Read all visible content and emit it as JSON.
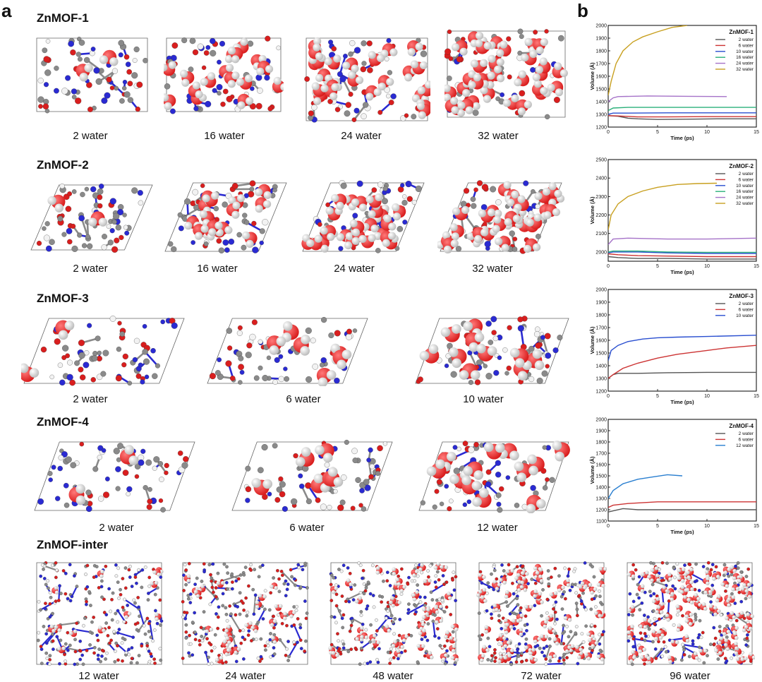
{
  "panel_labels": {
    "a": "a",
    "b": "b"
  },
  "colors": {
    "oxygen": "#d91e1e",
    "hydrogen": "#f2f2f2",
    "nitrogen": "#2a2ad2",
    "carbon": "#8a8a8a",
    "zinc": "#8a8ab0"
  },
  "panel_a": {
    "rows": [
      {
        "title": "ZnMOF-1",
        "labels": [
          "2 water",
          "16 water",
          "24 water",
          "32 water"
        ],
        "cell": "rect",
        "waters": [
          2,
          16,
          24,
          32
        ]
      },
      {
        "title": "ZnMOF-2",
        "labels": [
          "2 water",
          "16 water",
          "24 water",
          "32 water"
        ],
        "cell": "rhombus",
        "waters": [
          2,
          16,
          24,
          32
        ]
      },
      {
        "title": "ZnMOF-3",
        "labels": [
          "2 water",
          "6 water",
          "10 water"
        ],
        "cell": "parallelogram",
        "waters": [
          2,
          6,
          10
        ]
      },
      {
        "title": "ZnMOF-4",
        "labels": [
          "2 water",
          "6 water",
          "12 water"
        ],
        "cell": "parallelogram",
        "waters": [
          2,
          6,
          12
        ]
      },
      {
        "title": "ZnMOF-inter",
        "labels": [
          "12 water",
          "24 water",
          "48 water",
          "72 water",
          "96 water"
        ],
        "cell": "rect",
        "waters": [
          12,
          24,
          48,
          72,
          96
        ]
      }
    ]
  },
  "chart_data": [
    {
      "type": "line",
      "title": "ZnMOF-1",
      "xlabel": "Time (ps)",
      "ylabel": "Volume (Å)",
      "xlim": [
        0,
        15
      ],
      "ylim": [
        1200,
        2000
      ],
      "xticks": [
        "0",
        "5",
        "10",
        "15"
      ],
      "yticks": [
        "1200",
        "1300",
        "1400",
        "1500",
        "1600",
        "1700",
        "1800",
        "1900",
        "2000"
      ],
      "legend_position": "top-right",
      "series": [
        {
          "name": "2  water",
          "color": "#555555",
          "x": [
            0,
            1,
            2,
            3,
            5,
            8,
            11,
            15
          ],
          "y": [
            1290,
            1285,
            1270,
            1265,
            1260,
            1262,
            1265,
            1265
          ]
        },
        {
          "name": "6  water",
          "color": "#cc3333",
          "x": [
            0,
            1,
            3,
            6,
            10,
            15
          ],
          "y": [
            1290,
            1288,
            1280,
            1280,
            1282,
            1282
          ]
        },
        {
          "name": "10 water",
          "color": "#2a4fd0",
          "x": [
            0,
            0.5,
            2,
            6,
            10,
            15
          ],
          "y": [
            1300,
            1310,
            1310,
            1312,
            1312,
            1312
          ]
        },
        {
          "name": "16 water",
          "color": "#2bb07a",
          "x": [
            0,
            0.5,
            2,
            6,
            10,
            15
          ],
          "y": [
            1330,
            1350,
            1355,
            1355,
            1355,
            1355
          ]
        },
        {
          "name": "24 water",
          "color": "#a572c8",
          "x": [
            0,
            0.5,
            1,
            4,
            8,
            12
          ],
          "y": [
            1400,
            1430,
            1440,
            1445,
            1442,
            1440
          ]
        },
        {
          "name": "32 water",
          "color": "#c8a020",
          "x": [
            0,
            0.3,
            0.8,
            1.5,
            2.5,
            3.5,
            5,
            6.5,
            8
          ],
          "y": [
            1450,
            1560,
            1700,
            1800,
            1870,
            1910,
            1950,
            1985,
            2000
          ]
        }
      ]
    },
    {
      "type": "line",
      "title": "ZnMOF-2",
      "xlabel": "Time (ps)",
      "ylabel": "Volume (Å)",
      "xlim": [
        0,
        15
      ],
      "ylim": [
        1950,
        2500
      ],
      "xticks": [
        "0",
        "5",
        "10",
        "15"
      ],
      "yticks": [
        "2000",
        "2100",
        "2200",
        "2300",
        "2400",
        "2500"
      ],
      "legend_position": "top-right",
      "series": [
        {
          "name": "2  water",
          "color": "#555555",
          "x": [
            0,
            1,
            3,
            6,
            10,
            15
          ],
          "y": [
            1975,
            1970,
            1965,
            1965,
            1962,
            1962
          ]
        },
        {
          "name": "6  water",
          "color": "#cc3333",
          "x": [
            0,
            1,
            3,
            6,
            10,
            15
          ],
          "y": [
            1990,
            1985,
            1980,
            1978,
            1975,
            1975
          ]
        },
        {
          "name": "10 water",
          "color": "#2a4fd0",
          "x": [
            0,
            0.5,
            3,
            6,
            10,
            15
          ],
          "y": [
            1995,
            2000,
            2000,
            1995,
            1992,
            1992
          ]
        },
        {
          "name": "16 water",
          "color": "#2bb07a",
          "x": [
            0,
            0.5,
            3,
            6,
            10,
            15
          ],
          "y": [
            2000,
            2005,
            2005,
            2000,
            1998,
            1998
          ]
        },
        {
          "name": "24 water",
          "color": "#a572c8",
          "x": [
            0,
            0.5,
            2,
            6,
            10,
            15
          ],
          "y": [
            2040,
            2070,
            2075,
            2070,
            2070,
            2075
          ]
        },
        {
          "name": "32 water",
          "color": "#c8a020",
          "x": [
            0,
            0.3,
            1,
            2,
            3.5,
            5,
            7,
            9,
            11
          ],
          "y": [
            2120,
            2200,
            2260,
            2300,
            2330,
            2350,
            2365,
            2370,
            2372
          ]
        }
      ]
    },
    {
      "type": "line",
      "title": "ZnMOF-3",
      "xlabel": "Time (ps)",
      "ylabel": "Volume (Å)",
      "xlim": [
        0,
        15
      ],
      "ylim": [
        1200,
        2000
      ],
      "xticks": [
        "0",
        "5",
        "10",
        "15"
      ],
      "yticks": [
        "1200",
        "1300",
        "1400",
        "1500",
        "1600",
        "1700",
        "1800",
        "1900",
        "2000"
      ],
      "legend_position": "top-right",
      "series": [
        {
          "name": "2  water",
          "color": "#555555",
          "x": [
            0,
            0.5,
            1,
            3,
            6,
            10,
            15
          ],
          "y": [
            1300,
            1330,
            1340,
            1340,
            1345,
            1348,
            1348
          ]
        },
        {
          "name": "6  water",
          "color": "#cc3333",
          "x": [
            0,
            0.5,
            1.5,
            3,
            5,
            7,
            10,
            12,
            15
          ],
          "y": [
            1300,
            1330,
            1380,
            1420,
            1460,
            1490,
            1520,
            1540,
            1560
          ]
        },
        {
          "name": "10 water",
          "color": "#2a4fd0",
          "x": [
            0,
            0.3,
            1,
            2,
            3.5,
            5,
            7,
            10,
            15
          ],
          "y": [
            1440,
            1520,
            1560,
            1590,
            1610,
            1620,
            1625,
            1630,
            1640
          ]
        }
      ]
    },
    {
      "type": "line",
      "title": "ZnMOF-4",
      "xlabel": "Time (ps)",
      "ylabel": "Volume (Å)",
      "xlim": [
        0,
        15
      ],
      "ylim": [
        1100,
        2000
      ],
      "xticks": [
        "0",
        "5",
        "10",
        "15"
      ],
      "yticks": [
        "1100",
        "1200",
        "1300",
        "1400",
        "1500",
        "1600",
        "1700",
        "1800",
        "1900",
        "2000"
      ],
      "legend_position": "top-right",
      "series": [
        {
          "name": "2  water",
          "color": "#555555",
          "x": [
            0,
            0.5,
            1.5,
            3,
            6,
            10,
            15
          ],
          "y": [
            1180,
            1190,
            1210,
            1200,
            1200,
            1200,
            1200
          ]
        },
        {
          "name": "6  water",
          "color": "#cc3333",
          "x": [
            0,
            0.5,
            2,
            5,
            8,
            12,
            15
          ],
          "y": [
            1220,
            1240,
            1255,
            1270,
            1270,
            1270,
            1270
          ]
        },
        {
          "name": "12 water",
          "color": "#2a7fd0",
          "x": [
            0,
            0.5,
            1.5,
            3,
            4.5,
            6,
            7.5
          ],
          "y": [
            1300,
            1370,
            1430,
            1470,
            1490,
            1510,
            1500
          ]
        }
      ]
    }
  ]
}
